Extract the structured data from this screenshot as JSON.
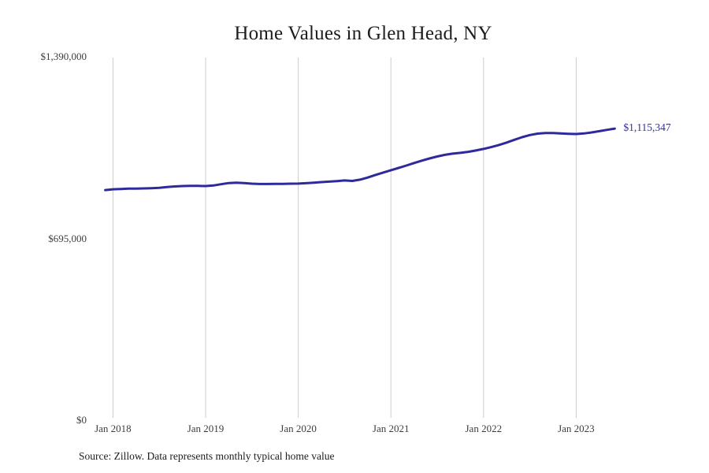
{
  "title": "Home Values in Glen Head, NY",
  "source_note": "Source: Zillow. Data represents monthly typical home value",
  "end_label": "$1,115,347",
  "colors": {
    "line": "#2e2a9b",
    "end_label": "#333099",
    "gridline": "#cccccc",
    "title_text": "#1d1d1d",
    "tick_text": "#3d3d3d",
    "source_text": "#1d1d1d",
    "background": "#ffffff"
  },
  "chart_data": {
    "type": "line",
    "title": "Home Values in Glen Head, NY",
    "xlabel": "",
    "ylabel": "",
    "ylim": [
      0,
      1390000
    ],
    "grid": "vertical-only",
    "legend": "none",
    "x_tick_labels": [
      "Jan 2018",
      "Jan 2019",
      "Jan 2020",
      "Jan 2021",
      "Jan 2022",
      "Jan 2023"
    ],
    "y_ticks": [
      {
        "label": "$1,390,000",
        "value": 1390000
      },
      {
        "label": "$695,000",
        "value": 695000
      },
      {
        "label": "$0",
        "value": 0
      }
    ],
    "end_annotation": {
      "text": "$1,115,347",
      "value": 1115347
    },
    "series": [
      {
        "name": "Typical home value",
        "x": [
          "Dec 2017",
          "Jan 2018",
          "Feb 2018",
          "Mar 2018",
          "Apr 2018",
          "May 2018",
          "Jun 2018",
          "Jul 2018",
          "Aug 2018",
          "Sep 2018",
          "Oct 2018",
          "Nov 2018",
          "Dec 2018",
          "Jan 2019",
          "Feb 2019",
          "Mar 2019",
          "Apr 2019",
          "May 2019",
          "Jun 2019",
          "Jul 2019",
          "Aug 2019",
          "Sep 2019",
          "Oct 2019",
          "Nov 2019",
          "Dec 2019",
          "Jan 2020",
          "Feb 2020",
          "Mar 2020",
          "Apr 2020",
          "May 2020",
          "Jun 2020",
          "Jul 2020",
          "Aug 2020",
          "Sep 2020",
          "Oct 2020",
          "Nov 2020",
          "Dec 2020",
          "Jan 2021",
          "Feb 2021",
          "Mar 2021",
          "Apr 2021",
          "May 2021",
          "Jun 2021",
          "Jul 2021",
          "Aug 2021",
          "Sep 2021",
          "Oct 2021",
          "Nov 2021",
          "Dec 2021",
          "Jan 2022",
          "Feb 2022",
          "Mar 2022",
          "Apr 2022",
          "May 2022",
          "Jun 2022",
          "Jul 2022",
          "Aug 2022",
          "Sep 2022",
          "Oct 2022",
          "Nov 2022",
          "Dec 2022",
          "Jan 2023",
          "Feb 2023",
          "Mar 2023",
          "Apr 2023",
          "May 2023",
          "Jun 2023"
        ],
        "values": [
          880000,
          883000,
          884500,
          885500,
          886000,
          886500,
          887500,
          889000,
          891500,
          894000,
          895500,
          896500,
          896000,
          895500,
          897500,
          902500,
          907000,
          908500,
          907000,
          904500,
          903500,
          903500,
          904000,
          904000,
          904500,
          905000,
          906500,
          908500,
          910500,
          912500,
          914500,
          917000,
          915000,
          920000,
          928000,
          938000,
          947000,
          956000,
          965000,
          974000,
          983500,
          992500,
          1001000,
          1008500,
          1015000,
          1019500,
          1022500,
          1026500,
          1031500,
          1037500,
          1044500,
          1052500,
          1062000,
          1072500,
          1082500,
          1090500,
          1096000,
          1098000,
          1098000,
          1096500,
          1095500,
          1094500,
          1096500,
          1100500,
          1105500,
          1110500,
          1115347
        ]
      }
    ]
  }
}
